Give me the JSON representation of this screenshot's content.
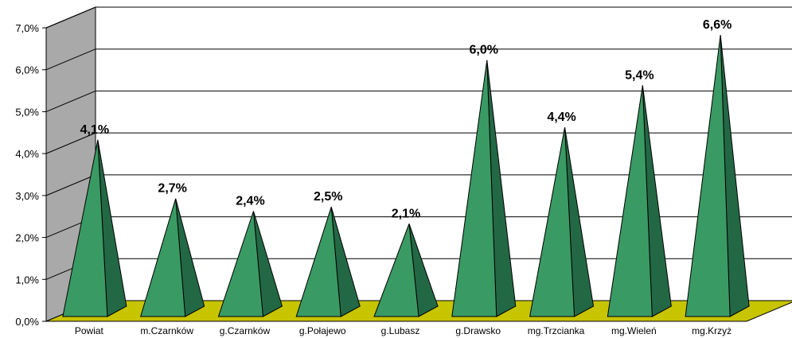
{
  "chart_data": {
    "type": "bar",
    "bar_shape": "pyramid-3d",
    "categories": [
      "Powiat",
      "m.Czarnków",
      "g.Czarnków",
      "g.Połajewo",
      "g.Lubasz",
      "g.Drawsko",
      "mg.Trzcianka",
      "mg.Wieleń",
      "mg.Krzyż"
    ],
    "values": [
      4.1,
      2.7,
      2.4,
      2.5,
      2.1,
      6.0,
      4.4,
      5.4,
      6.6
    ],
    "data_labels": [
      "4,1%",
      "2,7%",
      "2,4%",
      "2,5%",
      "2,1%",
      "6,0%",
      "4,4%",
      "5,4%",
      "6,6%"
    ],
    "y_ticks": [
      0,
      1,
      2,
      3,
      4,
      5,
      6,
      7
    ],
    "y_tick_labels": [
      "0,0%",
      "1,0%",
      "2,0%",
      "3,0%",
      "4,0%",
      "5,0%",
      "6,0%",
      "7,0%"
    ],
    "ylim": [
      0,
      7
    ],
    "grid": true,
    "legend": "none",
    "colors": {
      "bar_front": "#3a9a63",
      "bar_side": "#236845",
      "bar_outline": "#000000",
      "floor": "#c7c400",
      "wall": "#a9a9a9",
      "gridline": "#000000"
    }
  }
}
